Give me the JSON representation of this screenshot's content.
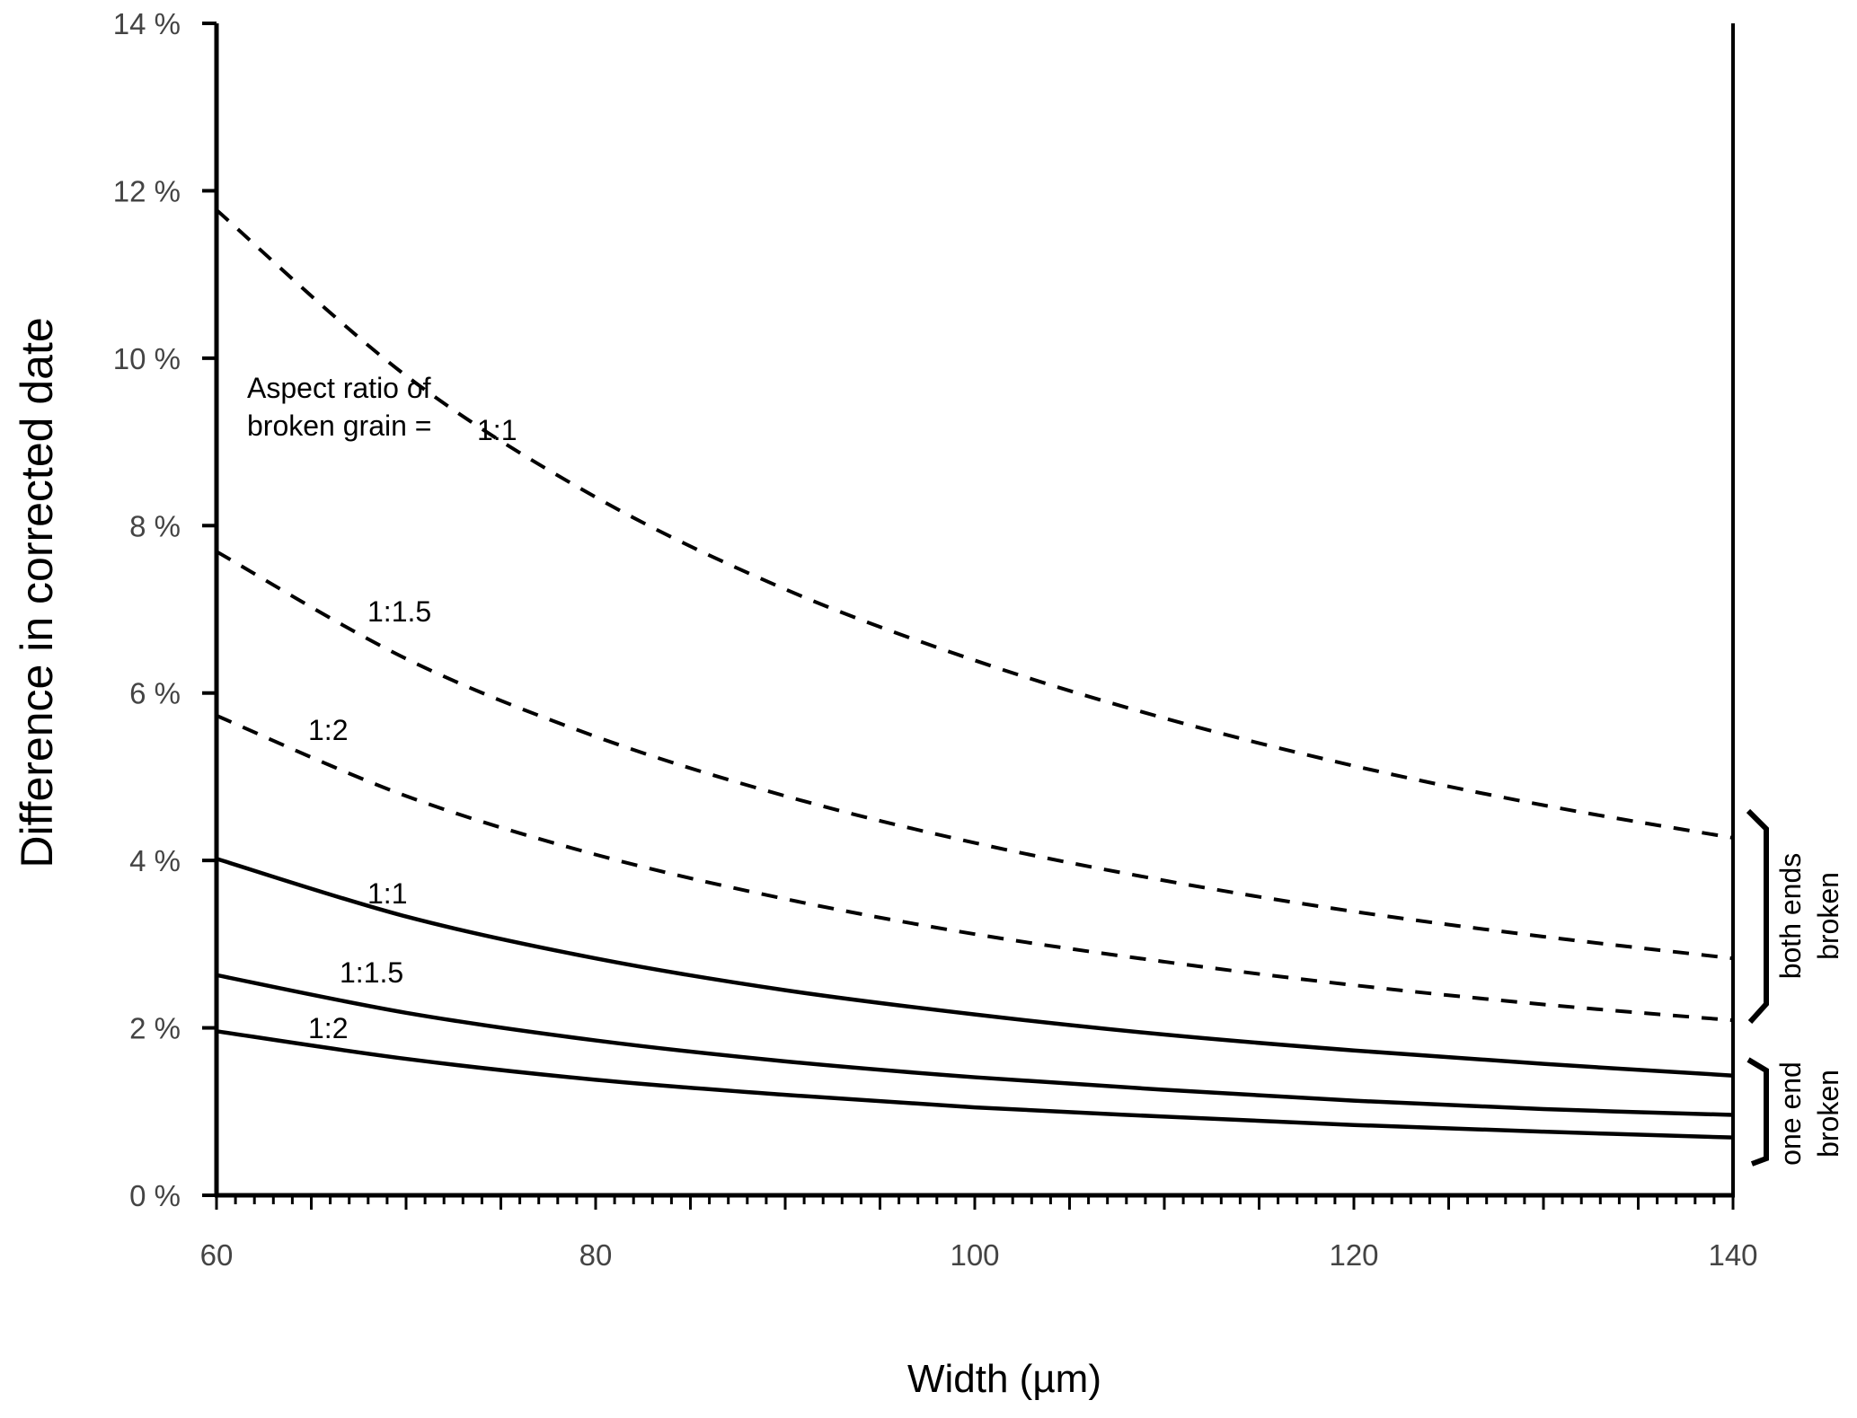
{
  "chart_data": {
    "type": "line",
    "title": "",
    "xlabel": "Width (µm)",
    "ylabel": "Difference in corrected date",
    "xlim": [
      60,
      140
    ],
    "ylim": [
      0,
      14
    ],
    "x_ticks": [
      60,
      80,
      100,
      120,
      140
    ],
    "x_tick_labels": [
      "60",
      "80",
      "100",
      "120",
      "140"
    ],
    "y_ticks": [
      0,
      2,
      4,
      6,
      8,
      10,
      12,
      14
    ],
    "y_tick_labels": [
      "0 %",
      "2 %",
      "4 %",
      "6 %",
      "8 %",
      "10 %",
      "12 %",
      "14 %"
    ],
    "grid": false,
    "x": [
      60,
      70,
      80,
      90,
      100,
      110,
      120,
      130,
      140
    ],
    "series": [
      {
        "name": "both ends broken 1:1",
        "group": "both ends broken",
        "style": "dashed",
        "label": "1:1",
        "values": [
          11.77,
          9.79,
          8.34,
          7.24,
          6.39,
          5.7,
          5.13,
          4.66,
          4.27
        ]
      },
      {
        "name": "both ends broken 1:1.5",
        "group": "both ends broken",
        "style": "dashed",
        "label": "1:1.5",
        "values": [
          7.69,
          6.41,
          5.48,
          4.77,
          4.21,
          3.76,
          3.39,
          3.09,
          2.83
        ]
      },
      {
        "name": "both ends broken 1:2",
        "group": "both ends broken",
        "style": "dashed",
        "label": "1:2",
        "values": [
          5.73,
          4.77,
          4.07,
          3.54,
          3.12,
          2.79,
          2.51,
          2.28,
          2.09
        ]
      },
      {
        "name": "one end broken 1:1",
        "group": "one end broken",
        "style": "solid",
        "label": "1:1",
        "values": [
          4.02,
          3.33,
          2.83,
          2.45,
          2.16,
          1.92,
          1.73,
          1.57,
          1.43
        ]
      },
      {
        "name": "one end broken 1:1.5",
        "group": "one end broken",
        "style": "solid",
        "label": "1:1.5",
        "values": [
          2.63,
          2.18,
          1.85,
          1.6,
          1.41,
          1.26,
          1.13,
          1.03,
          0.96
        ]
      },
      {
        "name": "one end broken 1:2",
        "group": "one end broken",
        "style": "solid",
        "label": "1:2",
        "values": [
          1.96,
          1.63,
          1.38,
          1.2,
          1.05,
          0.94,
          0.84,
          0.76,
          0.69
        ]
      }
    ],
    "annotations": {
      "aspect_line1": "Aspect ratio of",
      "aspect_line2": "broken grain =",
      "both_ends_line1": "both ends",
      "both_ends_line2": "broken",
      "one_end_line1": "one end",
      "one_end_line2": "broken"
    }
  }
}
